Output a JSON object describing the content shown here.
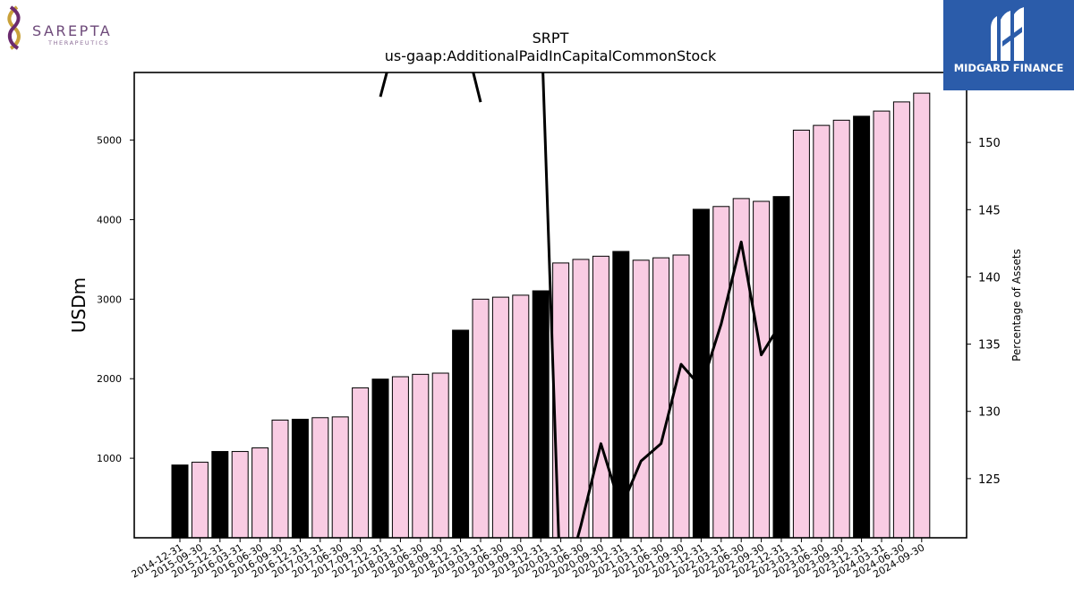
{
  "logos": {
    "left": {
      "name": "SAREPTA",
      "sub": "THERAPEUTICS"
    },
    "right": {
      "name": "MIDGARD FINANCE"
    }
  },
  "chart_data": {
    "type": "bar",
    "title": "SRPT",
    "subtitle": "us-gaap:AdditionalPaidInCapitalCommonStock",
    "ylabel": "USDm",
    "y2label": "Percentage of Assets",
    "ylim": [
      0,
      5850
    ],
    "y2lim": [
      120.6,
      155.2
    ],
    "yticks": [
      1000,
      2000,
      3000,
      4000,
      5000
    ],
    "y2ticks": [
      125,
      130,
      135,
      140,
      145,
      150
    ],
    "categories": [
      "2014-12-31",
      "2015-09-30",
      "2015-12-31",
      "2016-03-31",
      "2016-06-30",
      "2016-09-30",
      "2016-12-31",
      "2017-03-31",
      "2017-06-30",
      "2017-09-30",
      "2017-12-31",
      "2018-03-31",
      "2018-06-30",
      "2018-09-30",
      "2018-12-31",
      "2019-03-31",
      "2019-06-30",
      "2019-09-30",
      "2019-12-31",
      "2020-03-31",
      "2020-06-30",
      "2020-09-30",
      "2020-12-31",
      "2021-03-31",
      "2021-06-30",
      "2021-09-30",
      "2021-12-31",
      "2022-03-31",
      "2022-06-30",
      "2022-09-30",
      "2022-12-31",
      "2023-03-31",
      "2023-06-30",
      "2023-09-30",
      "2023-12-31",
      "2024-03-31",
      "2024-06-30",
      "2024-09-30"
    ],
    "series": [
      {
        "kind": "bar",
        "values": [
          915,
          950,
          1085,
          1085,
          1130,
          1480,
          1490,
          1510,
          1520,
          1885,
          1995,
          2025,
          2055,
          2070,
          2610,
          3000,
          3025,
          3050,
          3105,
          3455,
          3500,
          3540,
          3600,
          3490,
          3520,
          3555,
          4130,
          4165,
          4265,
          4230,
          4290,
          5125,
          5185,
          5250,
          5300,
          5365,
          5480,
          5590
        ]
      },
      {
        "kind": "line",
        "axis": "secondary",
        "values": [
          null,
          null,
          null,
          null,
          null,
          null,
          null,
          null,
          null,
          null,
          153.4,
          159,
          null,
          null,
          159,
          153,
          null,
          null,
          160,
          116,
          121.5,
          127.6,
          122.8,
          126.3,
          127.6,
          133.5,
          131.8,
          136.5,
          142.6,
          134.2,
          136.6,
          null,
          null,
          null,
          null,
          null,
          null,
          null
        ]
      }
    ],
    "bar_colors": {
      "year_end": "#000000",
      "quarter": "#f9cce3",
      "edge": "#000000"
    },
    "line_color": "#000000"
  }
}
